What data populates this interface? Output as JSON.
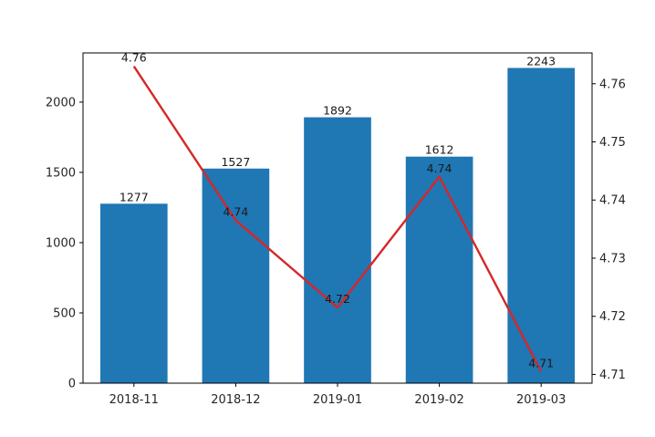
{
  "chart_data": {
    "type": "bar",
    "categories": [
      "2018-11",
      "2018-12",
      "2019-01",
      "2019-02",
      "2019-03"
    ],
    "series": [
      {
        "type": "bar",
        "axis": "left",
        "color": "#1f77b4",
        "values": [
          1277,
          1527,
          1892,
          1612,
          2243
        ],
        "labels": [
          "1277",
          "1527",
          "1892",
          "1612",
          "2243"
        ]
      },
      {
        "type": "line",
        "axis": "right",
        "color": "#d62728",
        "values": [
          4.763,
          4.7365,
          4.7215,
          4.744,
          4.7105
        ],
        "labels": [
          "4.76",
          "4.74",
          "4.72",
          "4.74",
          "4.71"
        ]
      }
    ],
    "y_left": {
      "min": 0,
      "max": 2350,
      "ticks": [
        0,
        500,
        1000,
        1500,
        2000
      ],
      "tick_labels": [
        "0",
        "500",
        "1000",
        "1500",
        "2000"
      ]
    },
    "y_right": {
      "min": 4.7085,
      "max": 4.7653,
      "ticks": [
        4.71,
        4.72,
        4.73,
        4.74,
        4.75,
        4.76
      ],
      "tick_labels": [
        "4.71",
        "4.72",
        "4.73",
        "4.74",
        "4.75",
        "4.76"
      ]
    },
    "title": "",
    "xlabel": "",
    "ylabel": "",
    "grid": false,
    "legend": "none"
  }
}
